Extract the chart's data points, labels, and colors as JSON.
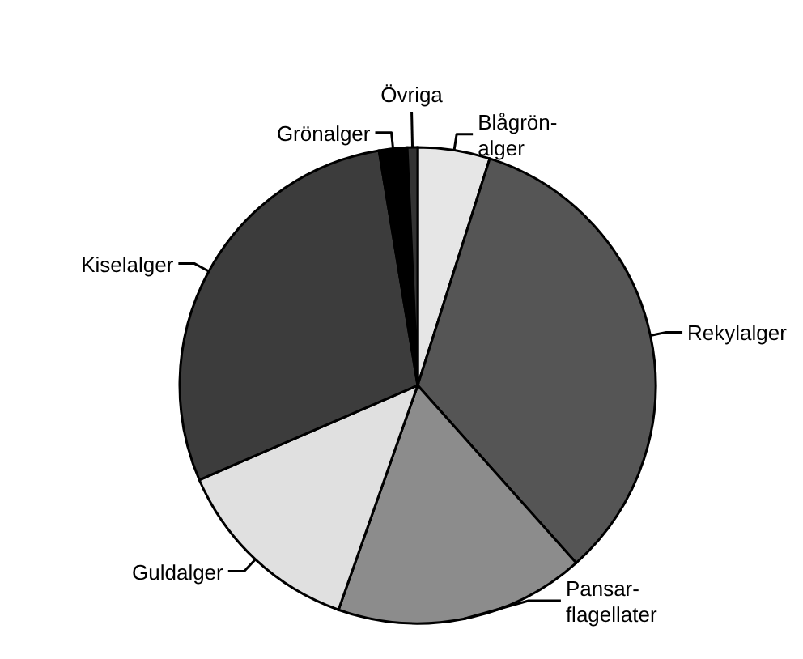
{
  "chart_data": {
    "type": "pie",
    "categories": [
      "Blågrön-alger",
      "Rekylalger",
      "Pansar-flagellater",
      "Guldalger",
      "Kiselalger",
      "Grönalger",
      "Övriga"
    ],
    "values": [
      4.9,
      33.5,
      17.0,
      13.1,
      28.9,
      1.9,
      0.7
    ],
    "colors": [
      "#e6e6e6",
      "#555555",
      "#8c8c8c",
      "#e0e0e0",
      "#3c3c3c",
      "#000000",
      "#333333"
    ]
  }
}
